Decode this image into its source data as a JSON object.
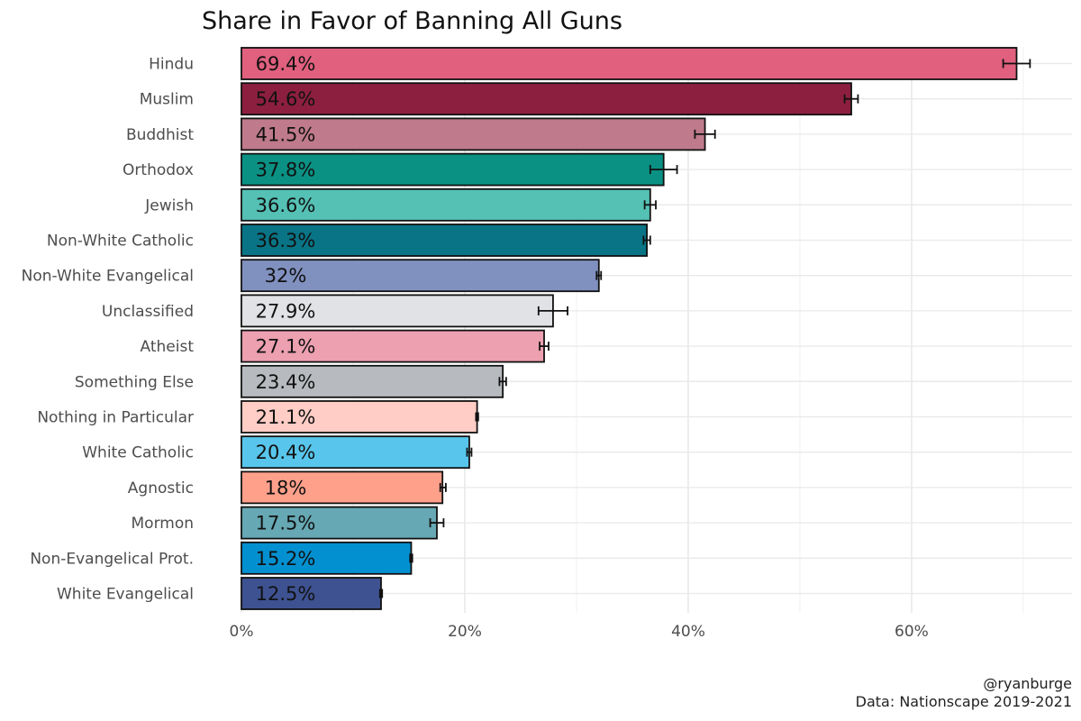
{
  "chart_data": {
    "type": "bar",
    "orientation": "horizontal",
    "title": "Share in Favor of Banning All Guns",
    "xlabel": "",
    "ylabel": "",
    "xlim": [
      0,
      74
    ],
    "x_ticks": [
      0,
      20,
      40,
      60
    ],
    "x_tick_labels": [
      "0%",
      "20%",
      "40%",
      "60%"
    ],
    "categories": [
      "Hindu",
      "Muslim",
      "Buddhist",
      "Orthodox",
      "Jewish",
      "Non-White Catholic",
      "Non-White Evangelical",
      "Unclassified",
      "Atheist",
      "Something Else",
      "Nothing in Particular",
      "White Catholic",
      "Agnostic",
      "Mormon",
      "Non-Evangelical Prot.",
      "White Evangelical"
    ],
    "values": [
      69.4,
      54.6,
      41.5,
      37.8,
      36.6,
      36.3,
      32,
      27.9,
      27.1,
      23.4,
      21.1,
      20.4,
      18,
      17.5,
      15.2,
      12.5
    ],
    "value_labels": [
      "69.4%",
      "54.6%",
      "41.5%",
      "37.8%",
      "36.6%",
      "36.3%",
      "32%",
      "27.9%",
      "27.1%",
      "23.4%",
      "21.1%",
      "20.4%",
      "18%",
      "17.5%",
      "15.2%",
      "12.5%"
    ],
    "error_low": [
      68.2,
      54.0,
      40.6,
      36.6,
      36.1,
      36.0,
      31.8,
      26.6,
      26.7,
      23.1,
      21.0,
      20.2,
      17.8,
      16.9,
      15.1,
      12.4
    ],
    "error_high": [
      70.6,
      55.2,
      42.4,
      39.0,
      37.1,
      36.6,
      32.2,
      29.2,
      27.5,
      23.7,
      21.2,
      20.6,
      18.3,
      18.1,
      15.3,
      12.6
    ],
    "colors": [
      "#E0607E",
      "#8C1F40",
      "#BF7A8B",
      "#0A9184",
      "#55C1B5",
      "#097486",
      "#8090BF",
      "#E0E2E5",
      "#ECA0B0",
      "#B7BABE",
      "#FFCDC5",
      "#58C6EC",
      "#FFA08B",
      "#66A8B3",
      "#0390D0",
      "#3E5291"
    ],
    "grid": true,
    "legend": "none"
  },
  "caption": {
    "handle": "@ryanburge",
    "source": "Data: Nationscape 2019-2021"
  }
}
